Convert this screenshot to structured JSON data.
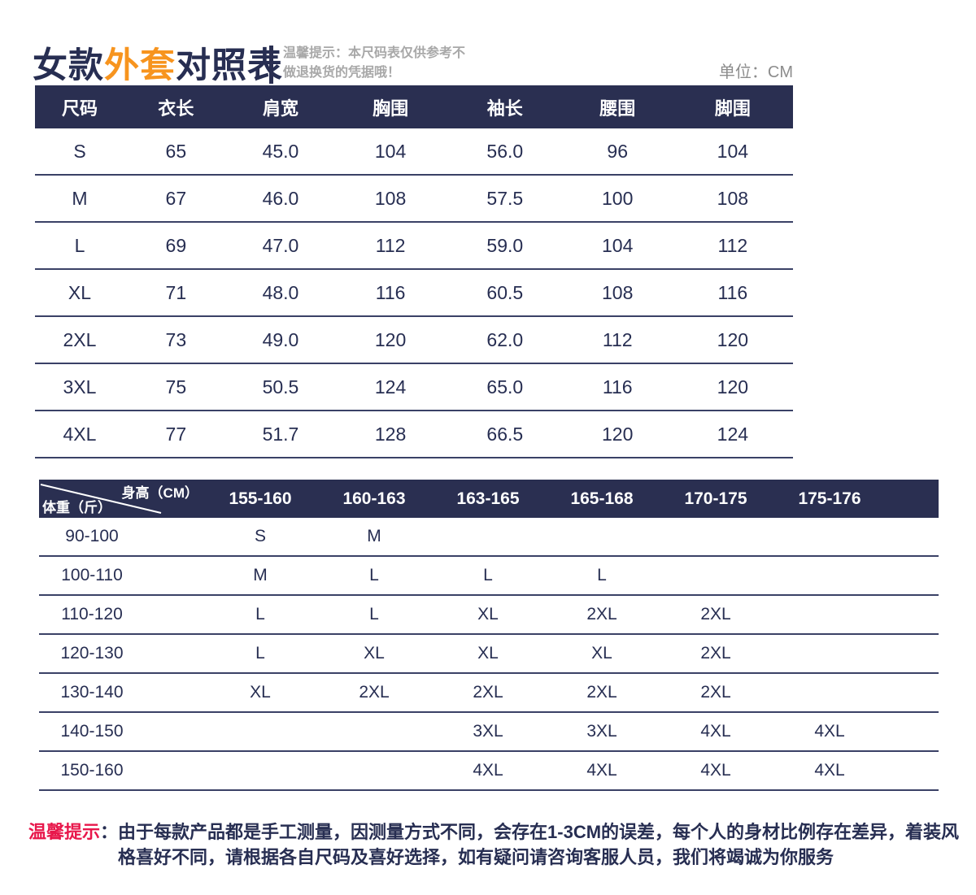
{
  "title": {
    "part1": "女款",
    "part2": "外套",
    "part3": "对照表"
  },
  "header_tip": {
    "line1": "温馨提示：本尺码表仅供参考不",
    "line2": "做退换货的凭据哦！"
  },
  "unit_label": "单位：CM",
  "colors": {
    "navy": "#2a2f51",
    "orange": "#f7941e",
    "separator": "#3a4166",
    "red": "#e8174b",
    "gray_tip": "#a8a8a8"
  },
  "size_table": {
    "headers": [
      "尺码",
      "衣长",
      "肩宽",
      "胸围",
      "袖长",
      "腰围",
      "脚围"
    ],
    "rows": [
      [
        "S",
        "65",
        "45.0",
        "104",
        "56.0",
        "96",
        "104"
      ],
      [
        "M",
        "67",
        "46.0",
        "108",
        "57.5",
        "100",
        "108"
      ],
      [
        "L",
        "69",
        "47.0",
        "112",
        "59.0",
        "104",
        "112"
      ],
      [
        "XL",
        "71",
        "48.0",
        "116",
        "60.5",
        "108",
        "116"
      ],
      [
        "2XL",
        "73",
        "49.0",
        "120",
        "62.0",
        "112",
        "120"
      ],
      [
        "3XL",
        "75",
        "50.5",
        "124",
        "65.0",
        "116",
        "120"
      ],
      [
        "4XL",
        "77",
        "51.7",
        "128",
        "66.5",
        "120",
        "124"
      ]
    ]
  },
  "hw_table": {
    "corner": {
      "top_right": "身高（CM）",
      "bottom_left": "体重（斤）"
    },
    "headers": [
      "155-160",
      "160-163",
      "163-165",
      "165-168",
      "170-175",
      "175-176"
    ],
    "rows": [
      {
        "weight": "90-100",
        "sizes": [
          "S",
          "M",
          "",
          "",
          "",
          ""
        ]
      },
      {
        "weight": "100-110",
        "sizes": [
          "M",
          "L",
          "L",
          "L",
          "",
          ""
        ]
      },
      {
        "weight": "110-120",
        "sizes": [
          "L",
          "L",
          "XL",
          "2XL",
          "2XL",
          ""
        ]
      },
      {
        "weight": "120-130",
        "sizes": [
          "L",
          "XL",
          "XL",
          "XL",
          "2XL",
          ""
        ]
      },
      {
        "weight": "130-140",
        "sizes": [
          "XL",
          "2XL",
          "2XL",
          "2XL",
          "2XL",
          ""
        ]
      },
      {
        "weight": "140-150",
        "sizes": [
          "",
          "",
          "3XL",
          "3XL",
          "4XL",
          "4XL"
        ]
      },
      {
        "weight": "150-160",
        "sizes": [
          "",
          "",
          "4XL",
          "4XL",
          "4XL",
          "4XL"
        ]
      }
    ]
  },
  "footer_note": {
    "label": "温馨提示",
    "colon": "：",
    "line1": "由于每款产品都是手工测量，因测量方式不同，会存在1-3CM的误差，每个人的身材比例存在差异，着装风",
    "line2": "格喜好不同，请根据各自尺码及喜好选择，如有疑问请咨询客服人员，我们将竭诚为你服务"
  }
}
